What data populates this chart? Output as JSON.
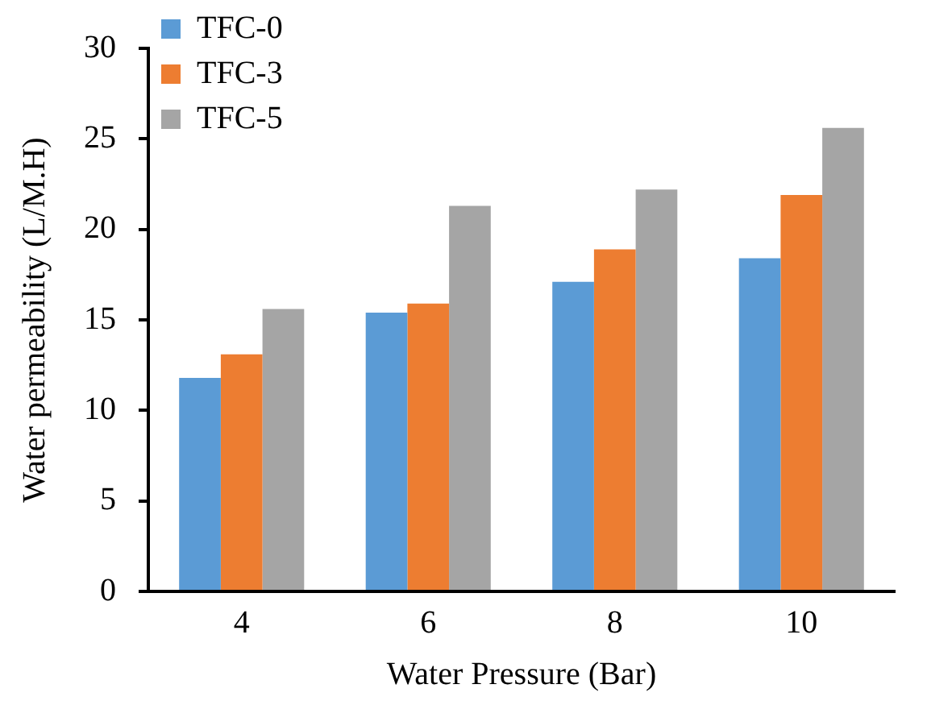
{
  "chart_data": {
    "type": "bar",
    "xlabel": "Water Pressure (Bar)",
    "ylabel": "Water permeability (L/M.H)",
    "categories": [
      "4",
      "6",
      "8",
      "10"
    ],
    "series": [
      {
        "name": "TFC-0",
        "color": "#5b9bd5",
        "values": [
          11.8,
          15.4,
          17.1,
          18.4
        ]
      },
      {
        "name": "TFC-3",
        "color": "#ed7d31",
        "values": [
          13.1,
          15.9,
          18.9,
          21.9
        ]
      },
      {
        "name": "TFC-5",
        "color": "#a5a5a5",
        "values": [
          15.6,
          21.3,
          22.2,
          25.6
        ]
      }
    ],
    "ylim": [
      0,
      30
    ],
    "yticks": [
      0,
      5,
      10,
      15,
      20,
      25,
      30
    ],
    "grid": false,
    "legend": "top left"
  }
}
